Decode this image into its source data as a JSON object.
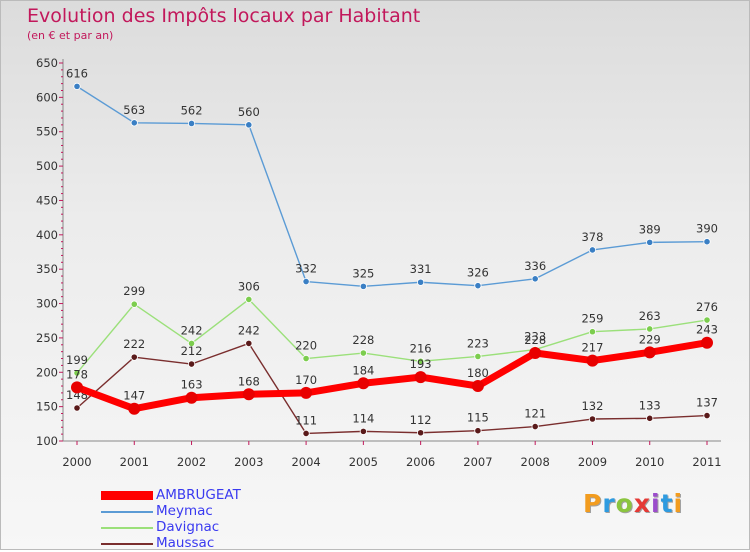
{
  "header": {
    "title": "Evolution des Impôts locaux par Habitant",
    "subtitle": "(en € et par an)"
  },
  "logo": {
    "text": "Proxiti",
    "colors": [
      "#f29c1f",
      "#2e9be0",
      "#8bc53f",
      "#e53935",
      "#9c4dcc",
      "#2e9be0",
      "#f29c1f"
    ]
  },
  "chart_data": {
    "type": "line",
    "title": "Evolution des Impôts locaux par Habitant",
    "subtitle": "(en € et par an)",
    "x": [
      "2000",
      "2001",
      "2002",
      "2003",
      "2004",
      "2005",
      "2006",
      "2007",
      "2008",
      "2009",
      "2010",
      "2011"
    ],
    "ylim": [
      100,
      650
    ],
    "yticks": [
      100,
      150,
      200,
      250,
      300,
      350,
      400,
      450,
      500,
      550,
      600,
      650
    ],
    "grid": false,
    "legend": "bottom-left",
    "series": [
      {
        "name": "Meymac",
        "color": "#5b9bd5",
        "marker": "#3a7fc4",
        "values": [
          616,
          563,
          562,
          560,
          332,
          325,
          331,
          326,
          336,
          378,
          389,
          390
        ]
      },
      {
        "name": "Davignac",
        "color": "#9be07a",
        "marker": "#7ccd4e",
        "values": [
          199,
          299,
          242,
          306,
          220,
          228,
          216,
          223,
          233,
          259,
          263,
          276
        ]
      },
      {
        "name": "Maussac",
        "color": "#7a2e2e",
        "marker": "#5a1a1a",
        "values": [
          148,
          222,
          212,
          242,
          111,
          114,
          112,
          115,
          121,
          132,
          133,
          137
        ]
      },
      {
        "name": "AMBRUGEAT",
        "color": "#ff0000",
        "marker": "#e80000",
        "bold": true,
        "values": [
          178,
          147,
          163,
          168,
          170,
          184,
          193,
          180,
          228,
          217,
          229,
          243
        ]
      }
    ]
  }
}
